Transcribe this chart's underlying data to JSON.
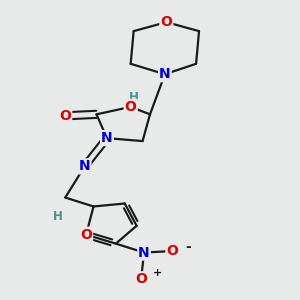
{
  "bg_color": "#e8eaea",
  "bond_color": "#1a1a1a",
  "atom_colors": {
    "O": "#dd0000",
    "N": "#0000cc",
    "H": "#4a9090"
  },
  "figsize": [
    3.0,
    3.0
  ],
  "dpi": 100
}
